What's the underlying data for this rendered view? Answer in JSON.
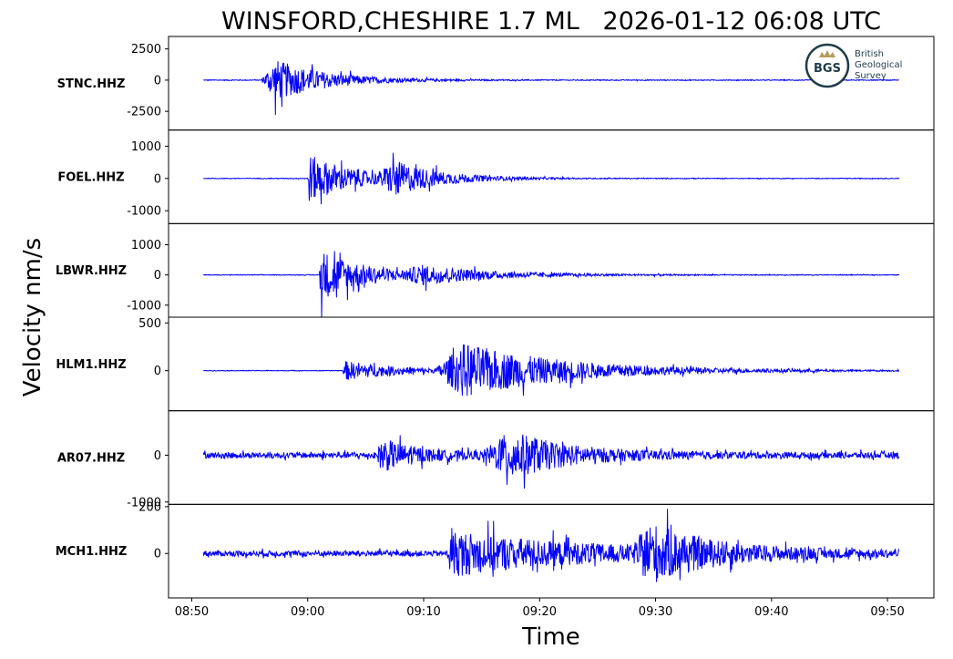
{
  "colors": {
    "trace": "#0000ff",
    "axis": "#000000",
    "background": "#ffffff",
    "logo": "#1f3d4a"
  },
  "logo": {
    "bgs_text": "BGS",
    "line1": "British",
    "line2": "Geological",
    "line3": "Survey",
    "icon": "crown-icon"
  },
  "chart_data": {
    "type": "line",
    "title": "WINSFORD,CHESHIRE 1.7 ML   2026-01-12 06:08 UTC",
    "ylabel": "Velocity nm/s",
    "xlabel": "Time",
    "x_ticks": [
      "08:50",
      "09:00",
      "09:10",
      "09:20",
      "09:30",
      "09:40",
      "09:50"
    ],
    "x_range": [
      "08:48",
      "09:54"
    ],
    "grid": false,
    "series": [
      {
        "name": "STNC.HHZ",
        "ylim": [
          -4000,
          3500
        ],
        "yticks": [
          {
            "label": "2500",
            "value": 2500
          },
          {
            "label": "0",
            "value": 0
          },
          {
            "label": "-2500",
            "value": -2500
          }
        ],
        "noise": 60,
        "start": "08:51",
        "end": "09:51",
        "events": [
          {
            "onset": "08:56",
            "peak": 3000,
            "rise": 1.2,
            "decay": 4.5
          }
        ]
      },
      {
        "name": "FOEL.HHZ",
        "ylim": [
          -1400,
          1500
        ],
        "yticks": [
          {
            "label": "1000",
            "value": 1000
          },
          {
            "label": "0",
            "value": 0
          },
          {
            "label": "-1000",
            "value": -1000
          }
        ],
        "noise": 20,
        "start": "08:51",
        "end": "09:51",
        "events": [
          {
            "onset": "09:00",
            "peak": 1350,
            "rise": 0.1,
            "decay": 4.0
          },
          {
            "onset": "09:06",
            "peak": 800,
            "rise": 1.5,
            "decay": 4.0
          }
        ]
      },
      {
        "name": "LBWR.HHZ",
        "ylim": [
          -1400,
          1700
        ],
        "yticks": [
          {
            "label": "1000",
            "value": 1000
          },
          {
            "label": "0",
            "value": 0
          },
          {
            "label": "-1000",
            "value": -1000
          }
        ],
        "noise": 20,
        "start": "08:51",
        "end": "09:51",
        "events": [
          {
            "onset": "09:01",
            "peak": 1550,
            "rise": 0.1,
            "decay": 4.0
          },
          {
            "onset": "09:08",
            "peak": 450,
            "rise": 2.0,
            "decay": 7.0
          }
        ]
      },
      {
        "name": "HLM1.HHZ",
        "ylim": [
          -420,
          560
        ],
        "yticks": [
          {
            "label": "500",
            "value": 500
          },
          {
            "label": "0",
            "value": 0
          }
        ],
        "noise": 6,
        "start": "08:51",
        "end": "09:51",
        "events": [
          {
            "onset": "09:03",
            "peak": 180,
            "rise": 0.3,
            "decay": 5.0
          },
          {
            "onset": "09:11",
            "peak": 500,
            "rise": 2.5,
            "decay": 9.0
          }
        ]
      },
      {
        "name": "AR07.HHZ",
        "ylim": [
          -1050,
          950
        ],
        "yticks": [
          {
            "label": "0",
            "value": 0
          },
          {
            "label": "-1000",
            "value": -1000
          }
        ],
        "noise": 120,
        "start": "08:51",
        "end": "09:51",
        "events": [
          {
            "onset": "09:06",
            "peak": 600,
            "rise": 0.3,
            "decay": 3.0
          },
          {
            "onset": "09:15",
            "peak": 850,
            "rise": 2.5,
            "decay": 5.0
          }
        ]
      },
      {
        "name": "MCH1.HHZ",
        "ylim": [
          -190,
          210
        ],
        "yticks": [
          {
            "label": "200",
            "value": 200
          },
          {
            "label": "0",
            "value": 0
          }
        ],
        "noise": 22,
        "start": "08:51",
        "end": "09:51",
        "events": [
          {
            "onset": "09:12",
            "peak": 160,
            "rise": 0.5,
            "decay": 12.0
          },
          {
            "onset": "09:28",
            "peak": 190,
            "rise": 1.5,
            "decay": 5.0
          }
        ]
      }
    ]
  }
}
